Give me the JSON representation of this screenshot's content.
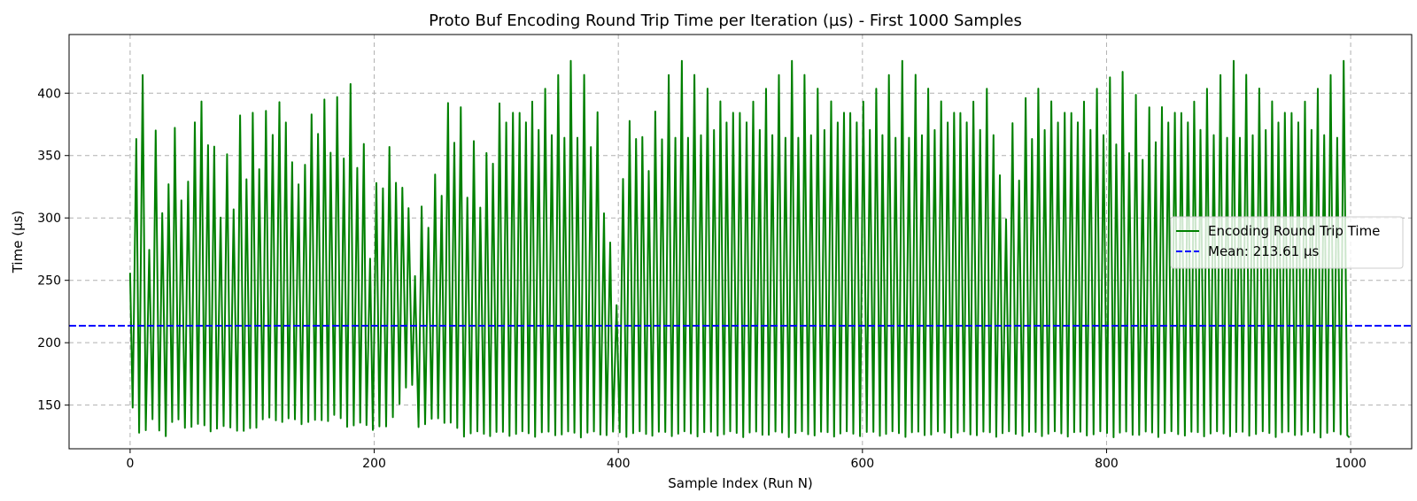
{
  "chart_data": {
    "type": "line",
    "title": "Proto Buf Encoding Round Trip Time per Iteration (µs) - First 1000 Samples",
    "xlabel": "Sample Index (Run N)",
    "ylabel": "Time (µs)",
    "xlim": [
      -50,
      1050
    ],
    "ylim": [
      115,
      447
    ],
    "x_ticks": [
      0,
      200,
      400,
      600,
      800,
      1000
    ],
    "y_ticks": [
      150,
      200,
      250,
      300,
      350,
      400
    ],
    "grid": true,
    "legend_position": "right",
    "series": [
      {
        "name": "Encoding Round Trip Time",
        "style": "solid",
        "color": "#008000",
        "x_range": [
          0,
          999
        ],
        "min": 124,
        "max": 426,
        "x": [
          0,
          2,
          3,
          5,
          7,
          9,
          12,
          16,
          22,
          29,
          37,
          44,
          52,
          62,
          72,
          83,
          94,
          108,
          118,
          128,
          136,
          151,
          168,
          178,
          188,
          197,
          210,
          228,
          231,
          235,
          240,
          252,
          265,
          272,
          290,
          303,
          316,
          336,
          356,
          372,
          383,
          398,
          404,
          410,
          423,
          437,
          448,
          462,
          480,
          505,
          520,
          540,
          560,
          585,
          600,
          620,
          640,
          655,
          668,
          690,
          708,
          711,
          740,
          755,
          770,
          785,
          800,
          830,
          850,
          870,
          890,
          920,
          945,
          965,
          980,
          990,
          996,
          999
        ],
        "peaks": [
          256,
          420,
          395,
          425,
          426,
          426,
          426,
          325,
          406,
          330,
          426,
          328,
          426,
          426,
          359,
          364,
          392,
          400,
          425,
          426,
          360,
          426,
          408,
          410,
          400,
          324,
          395,
          355,
          234,
          348,
          340,
          361,
          426,
          382,
          365,
          426,
          426,
          426,
          426,
          426,
          407,
          270,
          375,
          426,
          388,
          426,
          426,
          426,
          426,
          426,
          426,
          426,
          426,
          426,
          426,
          426,
          426,
          426,
          426,
          426,
          426,
          341,
          426,
          426,
          426,
          426,
          426,
          406,
          426,
          426,
          426,
          426,
          426,
          426,
          426,
          426,
          426,
          426
        ],
        "troughs": [
          145,
          143,
          148,
          130,
          127,
          125,
          124,
          138,
          127,
          124,
          136,
          130,
          130,
          130,
          127,
          130,
          124,
          135,
          135,
          135,
          134,
          133,
          138,
          131,
          131,
          130,
          128,
          163,
          163,
          133,
          130,
          137,
          130,
          124,
          124,
          124,
          124,
          124,
          124,
          124,
          124,
          124,
          124,
          124,
          124,
          124,
          124,
          124,
          124,
          124,
          124,
          124,
          124,
          124,
          124,
          124,
          124,
          124,
          124,
          124,
          124,
          124,
          124,
          124,
          124,
          124,
          124,
          124,
          124,
          124,
          124,
          124,
          124,
          124,
          124,
          124,
          124,
          124
        ],
        "end_value": 124
      },
      {
        "name": "Mean: 213.61 µs",
        "style": "dashed",
        "color": "#0000ff",
        "value": 213.61
      }
    ]
  }
}
